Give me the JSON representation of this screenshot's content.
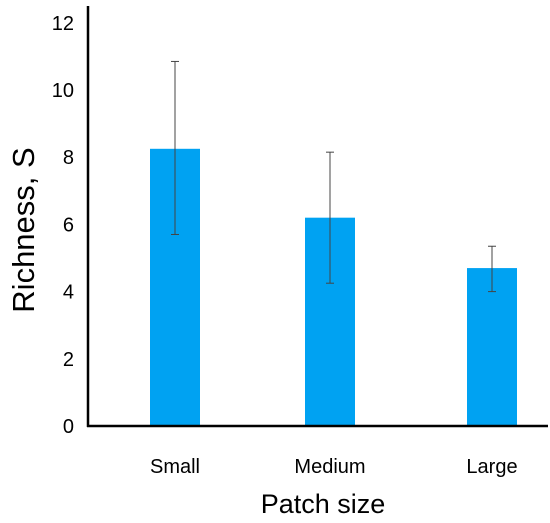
{
  "chart_data": {
    "type": "bar",
    "title": "",
    "xlabel": "Patch size",
    "ylabel": "Richness, S",
    "categories": [
      "Small",
      "Medium",
      "Large"
    ],
    "values": [
      8.25,
      6.2,
      4.7
    ],
    "error_low": [
      5.7,
      4.25,
      4.0
    ],
    "error_high": [
      10.85,
      8.15,
      5.35
    ],
    "ylim": [
      0,
      12.5
    ],
    "yticks": [
      "0",
      "2",
      "4",
      "6",
      "8",
      "10",
      "12"
    ],
    "ytick_values": [
      0,
      2,
      4,
      6,
      8,
      10,
      12
    ],
    "grid": false,
    "legend": "none",
    "bar_color": "#00A2F2"
  }
}
